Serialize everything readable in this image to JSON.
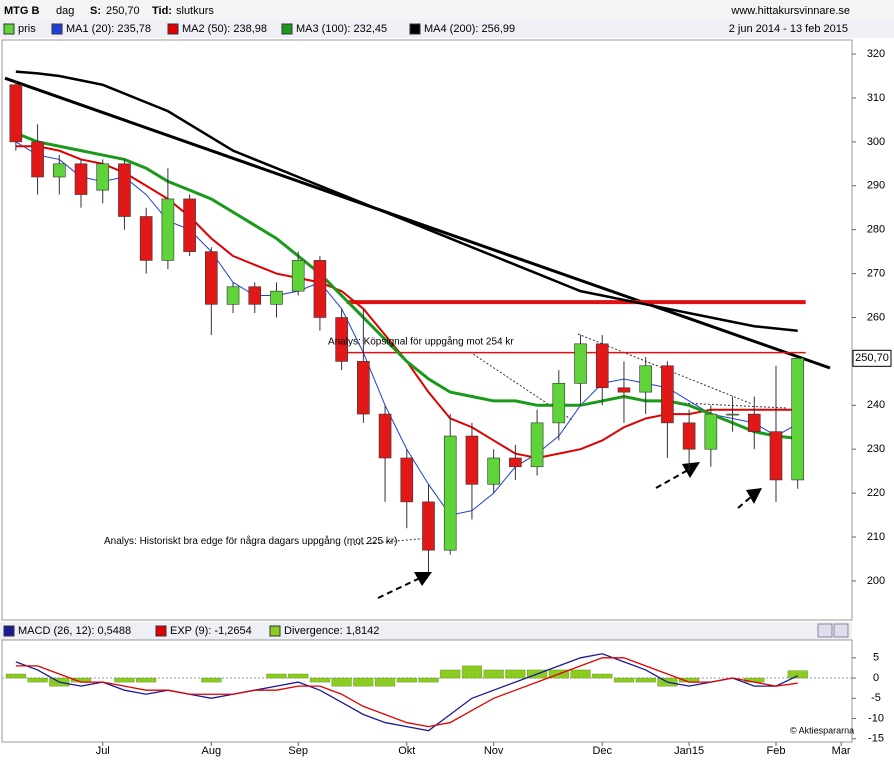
{
  "header": {
    "symbol": "MTG B",
    "period": "dag",
    "s_label": "S:",
    "s_value": "250,70",
    "tid_label": "Tid:",
    "tid_value": "slutkurs",
    "site": "www.hittakursvinnare.se",
    "date_range": "2 jun 2014 - 13 feb 2015",
    "copyright": "© Aktiespararna"
  },
  "chart_data": [
    {
      "type": "candlestick",
      "categories": [
        null,
        null,
        null,
        null,
        "Jul",
        null,
        null,
        null,
        null,
        "Aug",
        null,
        null,
        null,
        "Sep",
        null,
        null,
        null,
        null,
        "Okt",
        null,
        null,
        null,
        "Nov",
        null,
        null,
        null,
        null,
        "Dec",
        null,
        null,
        null,
        "Jan15",
        null,
        null,
        null,
        "Feb",
        null,
        null,
        "Mar"
      ],
      "price": {
        "name": "pris",
        "color": "#5fd33a",
        "down_color": "#e01818",
        "open": [
          313,
          300,
          292,
          295,
          289,
          295,
          283,
          273,
          287,
          275,
          263,
          267,
          263,
          266,
          273,
          260,
          250,
          238,
          228,
          218,
          207,
          233,
          222,
          228,
          226,
          236,
          245,
          254,
          244,
          243,
          249,
          236,
          230,
          238,
          238,
          234,
          223,
          null,
          null
        ],
        "high": [
          314,
          304,
          297,
          296,
          296,
          296,
          285,
          294,
          288,
          276,
          268,
          268,
          268,
          275,
          274,
          262,
          262,
          240,
          230,
          222,
          238,
          236,
          230,
          231,
          239,
          248,
          256,
          256,
          250,
          251,
          250,
          239,
          240,
          242,
          242,
          249,
          251,
          null,
          null
        ],
        "low": [
          298,
          288,
          288,
          285,
          286,
          280,
          270,
          271,
          274,
          256,
          261,
          261,
          260,
          265,
          257,
          248,
          236,
          218,
          212,
          202,
          206,
          214,
          220,
          223,
          224,
          232,
          240,
          240,
          236,
          238,
          228,
          225,
          226,
          234,
          230,
          218,
          221,
          null,
          null
        ],
        "close": [
          300,
          292,
          295,
          288,
          295,
          283,
          273,
          287,
          275,
          263,
          267,
          263,
          266,
          273,
          260,
          250,
          238,
          228,
          218,
          207,
          233,
          222,
          228,
          226,
          236,
          245,
          254,
          244,
          243,
          249,
          236,
          230,
          238,
          238,
          234,
          223,
          250.7,
          null,
          null
        ]
      },
      "series": [
        {
          "name": "MA1 (20): 235,78",
          "color": "#1f3fd8",
          "width": 1,
          "values": [
            300,
            297,
            296,
            292,
            291,
            292,
            288,
            282,
            280,
            275,
            268,
            265,
            265,
            266,
            268,
            262,
            252,
            240,
            230,
            222,
            215,
            216,
            220,
            226,
            229,
            233,
            240,
            245,
            246,
            245,
            244,
            241,
            238,
            237,
            236,
            233,
            235.78,
            null,
            null
          ]
        },
        {
          "name": "MA2 (50): 238,98",
          "color": "#e00000",
          "width": 2,
          "values": [
            299,
            299,
            298,
            296,
            295,
            293,
            290,
            287,
            283,
            278,
            274,
            272,
            270,
            269,
            268,
            266,
            262,
            256,
            250,
            243,
            237,
            235,
            232,
            229,
            228,
            229,
            230,
            232,
            235,
            237,
            238,
            238,
            239,
            239,
            239,
            239,
            238.98,
            null,
            null
          ]
        },
        {
          "name": "MA3 (100): 232,45",
          "color": "#1a9a1a",
          "width": 3,
          "values": [
            302,
            300,
            299,
            298,
            297,
            296,
            294,
            291,
            289,
            287,
            284,
            281,
            278,
            274,
            270,
            265,
            260,
            255,
            250,
            246,
            243,
            242,
            241,
            241,
            240,
            240,
            240,
            241,
            242,
            241,
            241,
            240,
            238,
            236,
            234,
            233,
            232.45,
            null,
            null
          ]
        },
        {
          "name": "MA4 (200): 256,99",
          "color": "#000000",
          "width": 2.5,
          "values": [
            316,
            315.6,
            315,
            314,
            313,
            311,
            309,
            307,
            304,
            301,
            298,
            296,
            294,
            292,
            290,
            288,
            286,
            284,
            282,
            280,
            278,
            276,
            274,
            272,
            270,
            268,
            266,
            265,
            264,
            263,
            262,
            261,
            260,
            259,
            258,
            257.5,
            256.99,
            null,
            null
          ]
        }
      ],
      "ylim": [
        191.1,
        323.2
      ],
      "yticks": [
        200,
        210,
        220,
        230,
        240,
        250,
        260,
        270,
        280,
        290,
        300,
        310,
        320
      ],
      "last_price": {
        "value": 250.7,
        "label": "250,70"
      },
      "trend_line": {
        "start": 314.5,
        "end": 248.5
      },
      "hlines": [
        263.5,
        252
      ],
      "annotations": [
        "Analys: Köpsignal för uppgång mot 254 kr",
        "Analys: Historiskt bra edge för några dagars uppgång (mot 225 kr)"
      ]
    },
    {
      "type": "macd",
      "series": [
        {
          "name": "MACD (26, 12): 0,5488",
          "color": "#1a1a99",
          "values": [
            4,
            2,
            -1,
            -2,
            -1,
            -3,
            -4,
            -3,
            -4,
            -5,
            -4,
            -3,
            -2,
            -1,
            -3,
            -6,
            -9,
            -11,
            -12,
            -13,
            -9,
            -5,
            -3,
            -1,
            1,
            3,
            5,
            6,
            4,
            2,
            -1,
            -2,
            -1,
            0,
            -2,
            -2,
            0.5488,
            null,
            null
          ]
        },
        {
          "name": "EXP (9): -1,2654",
          "color": "#e00000",
          "values": [
            3,
            3,
            1,
            -1,
            -1,
            -2,
            -3,
            -3,
            -4,
            -4,
            -4,
            -3,
            -3,
            -2,
            -2,
            -4,
            -7,
            -9,
            -11,
            -12,
            -11,
            -8,
            -5,
            -3,
            -1,
            1,
            3,
            5,
            5,
            3,
            1,
            -1,
            -1,
            0,
            -1,
            -2,
            -1.2654,
            null,
            null
          ]
        },
        {
          "name": "Divergence: 1,8142",
          "color": "#8ccc22",
          "values": [
            1,
            -1,
            -2,
            -1,
            0,
            -1,
            -1,
            0,
            0,
            -1,
            0,
            0,
            1,
            1,
            -1,
            -2,
            -2,
            -2,
            -1,
            -1,
            2,
            3,
            2,
            2,
            2,
            2,
            2,
            1,
            -1,
            -1,
            -2,
            -1,
            0,
            0,
            -1,
            0,
            1.8142,
            null,
            null
          ]
        }
      ],
      "ylim": [
        -15.8,
        9.4
      ],
      "yticks": [
        5,
        0,
        -5,
        -10,
        -15
      ]
    }
  ]
}
